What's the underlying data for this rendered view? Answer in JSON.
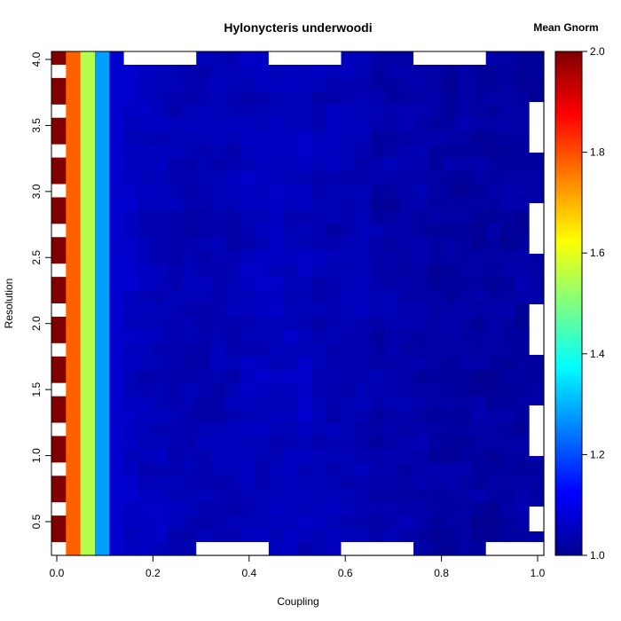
{
  "chart_data": {
    "type": "heatmap",
    "title": "Hylonycteris underwoodi",
    "xlabel": "Coupling",
    "ylabel": "Resolution",
    "xlim": [
      0.0,
      1.0
    ],
    "ylim": [
      0.25,
      4.0
    ],
    "x_ticks": [
      "0.0",
      "0.2",
      "0.4",
      "0.6",
      "0.8",
      "1.0"
    ],
    "y_ticks": [
      "0.5",
      "1.0",
      "1.5",
      "2.0",
      "2.5",
      "3.0",
      "3.5",
      "4.0"
    ],
    "colorbar": {
      "title": "Mean Gnorm",
      "range": [
        1.0,
        2.0
      ],
      "ticks": [
        "1.0",
        "1.2",
        "1.4",
        "1.6",
        "1.8",
        "2.0"
      ],
      "colormap": "jet"
    },
    "column_values": [
      2.0,
      1.78,
      1.55,
      1.28,
      1.07,
      1.06,
      1.05,
      1.05,
      1.04,
      1.04,
      1.04,
      1.04,
      1.04,
      1.05,
      1.05,
      1.05,
      1.05,
      1.05,
      1.04,
      1.04,
      1.04,
      1.04,
      1.03,
      1.03,
      1.03,
      1.03,
      1.02,
      1.02,
      1.02,
      1.02,
      1.02,
      1.02,
      1.02,
      1.02
    ],
    "first_column_pattern": [
      1,
      0,
      1,
      1,
      0,
      1,
      1,
      0,
      1,
      1,
      0,
      1,
      1,
      0,
      1,
      1,
      0,
      1,
      1,
      0,
      1,
      1,
      0,
      1,
      1,
      0,
      1,
      1,
      0,
      1,
      1,
      0,
      1,
      1,
      0,
      1,
      1,
      0
    ]
  }
}
